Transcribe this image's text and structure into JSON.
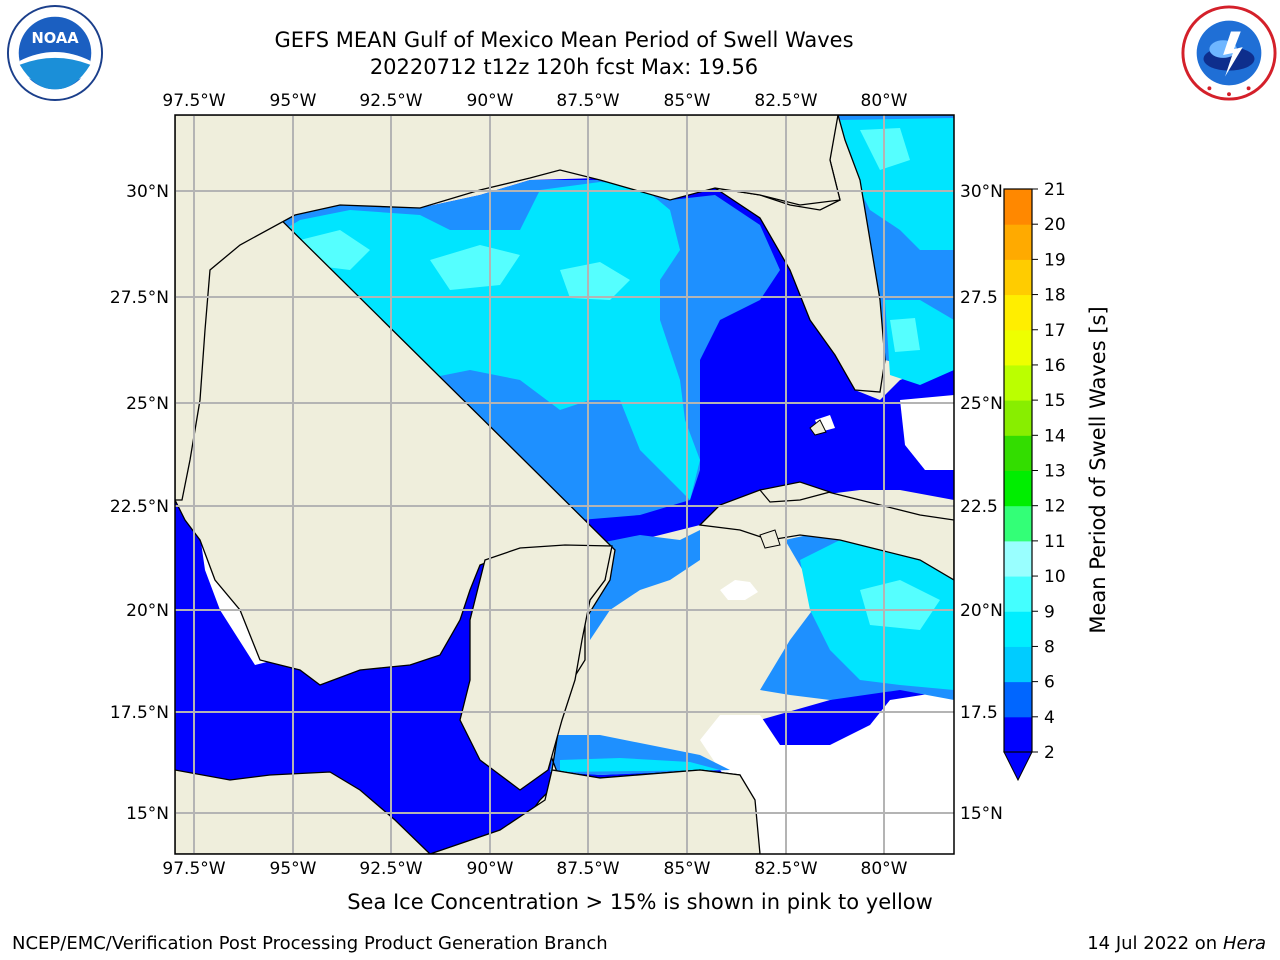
{
  "header": {
    "title": "GEFS MEAN Gulf of Mexico Mean Period of Swell Waves",
    "subtitle": "20220712 t12z 120h fcst   Max: 19.56"
  },
  "logos": {
    "left": {
      "icon": "noaa-logo",
      "text": "NOAA",
      "ring_text": "NATIONAL OCEANIC AND ATMOSPHERIC ADMINISTRATION · U.S. DEPARTMENT OF COMMERCE"
    },
    "right": {
      "icon": "nws-logo",
      "ring_text": "NATIONAL WEATHER SERVICE"
    }
  },
  "map": {
    "lon_labels": [
      "97.5°W",
      "95°W",
      "92.5°W",
      "90°W",
      "87.5°W",
      "85°W",
      "82.5°W",
      "80°W"
    ],
    "lat_labels_left": [
      "30°N",
      "27.5°N",
      "25°N",
      "22.5°N",
      "20°N",
      "17.5°N",
      "15°N"
    ],
    "lat_labels_right": [
      "30°N",
      "27.5",
      "25°N",
      "22.5",
      "20°N",
      "17.5",
      "15°N"
    ],
    "colors": {
      "land": "#efeedc",
      "grid": "#b4b4b4",
      "coast": "#000000"
    }
  },
  "colorbar": {
    "label": "Mean Period of Swell Waves [s]",
    "ticks": [
      "2",
      "4",
      "6",
      "8",
      "9",
      "10",
      "11",
      "12",
      "13",
      "14",
      "15",
      "16",
      "17",
      "18",
      "19",
      "20",
      "21"
    ],
    "colors": [
      "#0000ff",
      "#0066ff",
      "#00ccff",
      "#00eeff",
      "#44ffff",
      "#99ffff",
      "#33ff77",
      "#00ee00",
      "#33dd00",
      "#88ee00",
      "#bbff00",
      "#eeff00",
      "#ffee00",
      "#ffcc00",
      "#ffaa00",
      "#ff8800",
      "#ff6600",
      "#ff4400",
      "#ff1100"
    ]
  },
  "caption": "Sea Ice Concentration > 15% is shown in pink to yellow",
  "footer": {
    "left": "NCEP/EMC/Verification Post Processing Product Generation Branch",
    "right_prefix": "14 Jul 2022 on ",
    "right_host": "Hera"
  }
}
